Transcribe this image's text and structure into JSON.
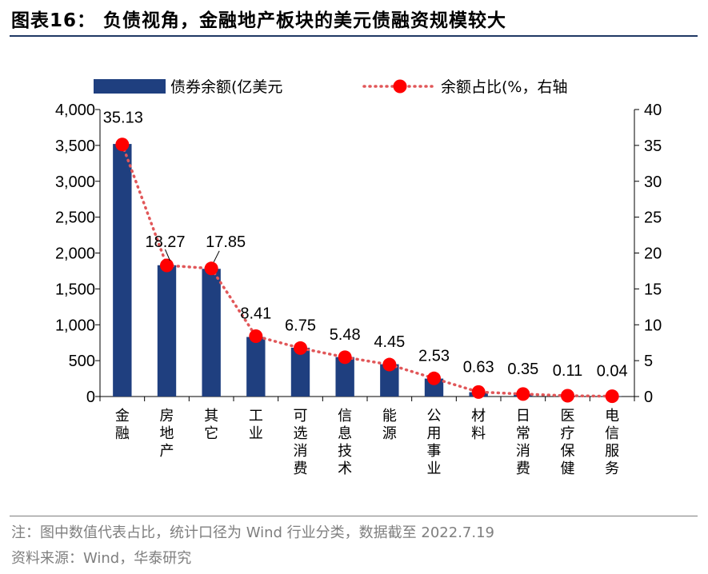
{
  "header": {
    "title": "图表16：  负债视角，金融地产板块的美元债融资规模较大"
  },
  "footer": {
    "note": "注：图中数值代表占比，统计口径为 Wind 行业分类，数据截至 2022.7.19",
    "source": "资料来源：Wind，华泰研究"
  },
  "chart_data": {
    "type": "bar",
    "categories": [
      "金融",
      "房地产",
      "其它",
      "工业",
      "可选消费",
      "信息技术",
      "能源",
      "公用事业",
      "材料",
      "日常消费",
      "医疗保健",
      "电信服务"
    ],
    "series": [
      {
        "name": "债券余额(亿美元",
        "type": "bar",
        "axis": "left",
        "color": "#1f3f7f",
        "values": [
          3520,
          1830,
          1780,
          830,
          680,
          550,
          450,
          250,
          60,
          35,
          11,
          4
        ]
      },
      {
        "name": "余额占比(%，右轴",
        "type": "line",
        "axis": "right",
        "color": "#ff0000",
        "line_style": "dotted",
        "values": [
          35.13,
          18.27,
          17.85,
          8.41,
          6.75,
          5.48,
          4.45,
          2.53,
          0.63,
          0.35,
          0.11,
          0.04
        ],
        "labels": [
          "35.13",
          "18.27",
          "17.85",
          "8.41",
          "6.75",
          "5.48",
          "4.45",
          "2.53",
          "0.63",
          "0.35",
          "0.11",
          "0.04"
        ]
      }
    ],
    "y_left": {
      "ylim": [
        0,
        4000
      ],
      "ticks": [
        0,
        500,
        1000,
        1500,
        2000,
        2500,
        3000,
        3500,
        4000
      ],
      "tick_labels": [
        "0",
        "500",
        "1,000",
        "1,500",
        "2,000",
        "2,500",
        "3,000",
        "3,500",
        "4,000"
      ]
    },
    "y_right": {
      "ylim": [
        0,
        40
      ],
      "ticks": [
        0,
        5,
        10,
        15,
        20,
        25,
        30,
        35,
        40
      ],
      "tick_labels": [
        "0",
        "5",
        "10",
        "15",
        "20",
        "25",
        "30",
        "35",
        "40"
      ]
    },
    "legend": {
      "position": "top"
    },
    "grid": false
  }
}
